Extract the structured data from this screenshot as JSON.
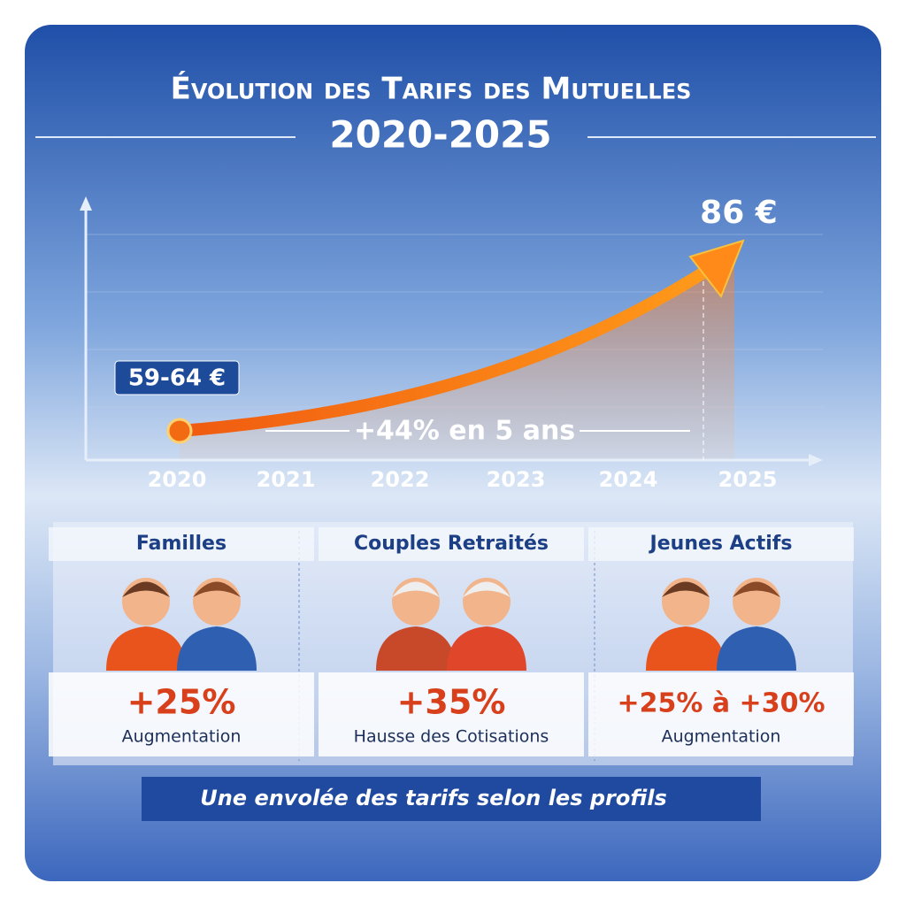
{
  "header": {
    "title": "Évolution des Tarifs des Mutuelles",
    "period": "2020-2025"
  },
  "trend": {
    "end_value": "86 €",
    "start_value": "59-64 €",
    "increase": "+44% en 5 ans",
    "years": [
      "2020",
      "2021",
      "2022",
      "2023",
      "2024",
      "2025"
    ]
  },
  "profiles": [
    {
      "name": "Familles",
      "change": "+25%",
      "label": "Augmentation"
    },
    {
      "name": "Couples Retraités",
      "change": "+35%",
      "label": "Hausse des Cotisations"
    },
    {
      "name": "Jeunes Actifs",
      "change": "+25% à +30%",
      "label": "Augmentation"
    }
  ],
  "footer": "Une envolée des tarifs selon les profils"
}
